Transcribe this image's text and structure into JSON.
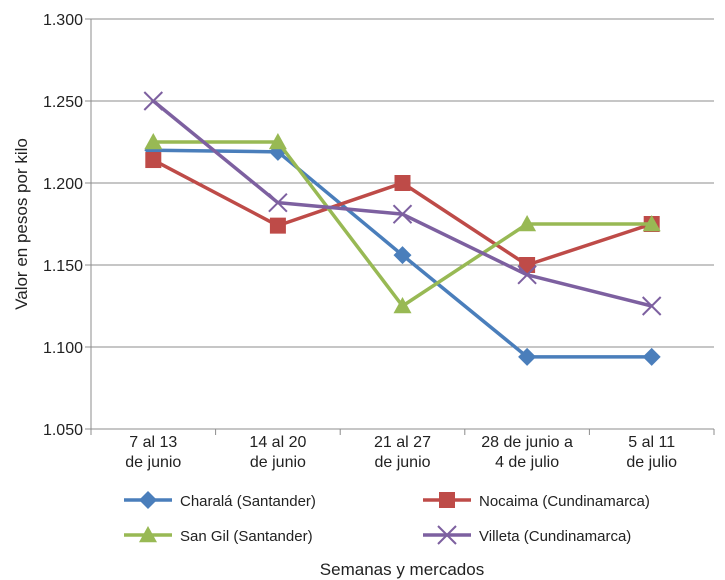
{
  "chart_data": {
    "type": "line",
    "categories": [
      [
        "7 al 13",
        "de junio"
      ],
      [
        "14 al 20",
        "de junio"
      ],
      [
        "21 al 27",
        "de junio"
      ],
      [
        "28 de junio a",
        "4 de julio"
      ],
      [
        "5 al 11",
        "de julio"
      ]
    ],
    "series": [
      {
        "name": "Charalá (Santander)",
        "values": [
          1220,
          1219,
          1156,
          1094,
          1094
        ],
        "color": "#4A7EBB",
        "marker": "diamond"
      },
      {
        "name": "Nocaima (Cundinamarca)",
        "values": [
          1214,
          1174,
          1200,
          1150,
          1175
        ],
        "color": "#BE4B48",
        "marker": "square"
      },
      {
        "name": "San Gil (Santander)",
        "values": [
          1225,
          1225,
          1125,
          1175,
          1175
        ],
        "color": "#98B954",
        "marker": "triangle"
      },
      {
        "name": "Villeta (Cundinamarca)",
        "values": [
          1250,
          1188,
          1181,
          1144,
          1125
        ],
        "color": "#7D60A0",
        "marker": "x"
      }
    ],
    "ylim": [
      1050,
      1300
    ],
    "yticks": [
      1050,
      1100,
      1150,
      1200,
      1250,
      1300
    ],
    "ytick_labels": [
      "1.050",
      "1.100",
      "1.150",
      "1.200",
      "1.250",
      "1.300"
    ],
    "ylabel": "Valor en pesos por kilo",
    "xlabel": "Semanas y mercados",
    "grid": true,
    "legend_position": "bottom"
  }
}
